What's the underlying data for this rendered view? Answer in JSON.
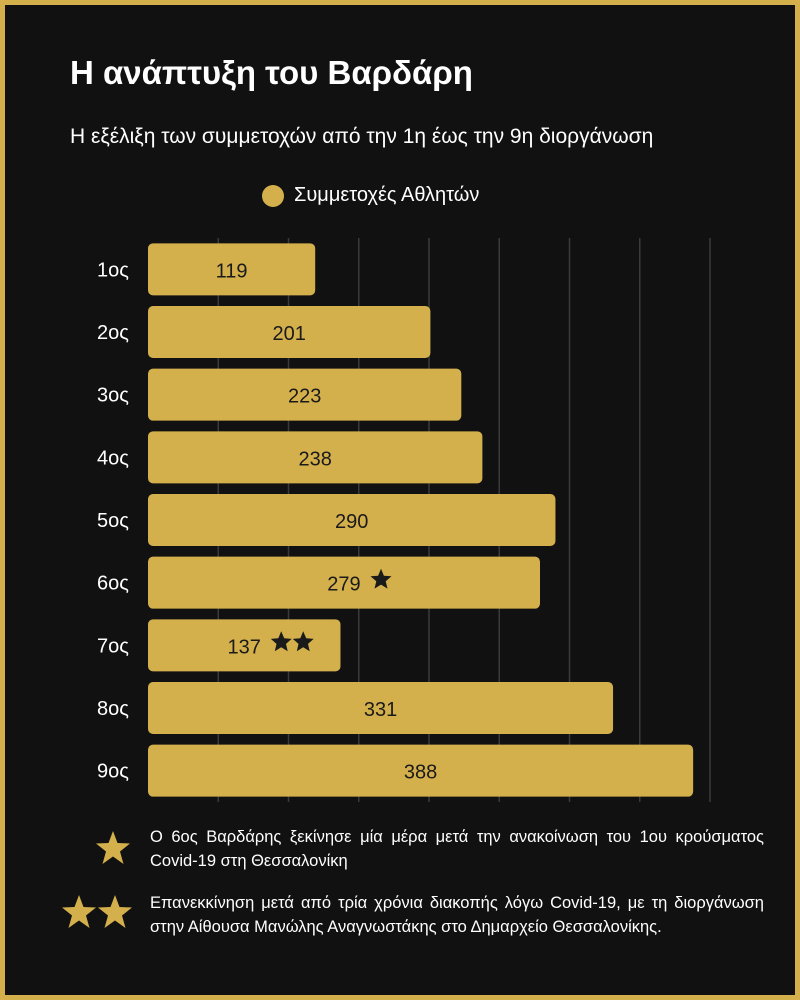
{
  "header": {
    "title": "Η ανάπτυξη του Βαρδάρη",
    "subtitle": "Η εξέλιξη των συμμετοχών από την 1η έως την 9η διοργάνωση"
  },
  "chart_data": {
    "type": "bar",
    "orientation": "horizontal",
    "categories": [
      "1ος",
      "2ος",
      "3ος",
      "4ος",
      "5ος",
      "6ος",
      "7ος",
      "8ος",
      "9ος"
    ],
    "series": [
      {
        "name": "Συμμετοχές Αθλητών",
        "values": [
          119,
          201,
          223,
          238,
          290,
          279,
          137,
          331,
          388
        ]
      }
    ],
    "bar_markers": [
      "",
      "",
      "",
      "",
      "",
      "★",
      "★★",
      "",
      ""
    ],
    "xlim": [
      0,
      400
    ],
    "grid": true,
    "legend": "top",
    "bar_color": "#d4b04c",
    "grid_color": "#3a3a3a"
  },
  "footnotes": [
    {
      "marker": "★",
      "text": "Ο 6ος Βαρδάρης ξεκίνησε μία μέρα μετά την ανακοίνωση του 1ου κρούσματος Covid-19 στη Θεσσαλονίκη"
    },
    {
      "marker": "★★",
      "text": "Επανεκκίνηση μετά από τρία χρόνια διακοπής λόγω Covid-19, με τη διοργάνωση στην Αίθουσα Μανώλης Αναγνωστάκης στο Δημαρχείο Θεσσαλονίκης."
    }
  ],
  "colors": {
    "background": "#111111",
    "accent": "#d4b04c",
    "text": "#ffffff",
    "bar_text": "#1a1a1a"
  }
}
